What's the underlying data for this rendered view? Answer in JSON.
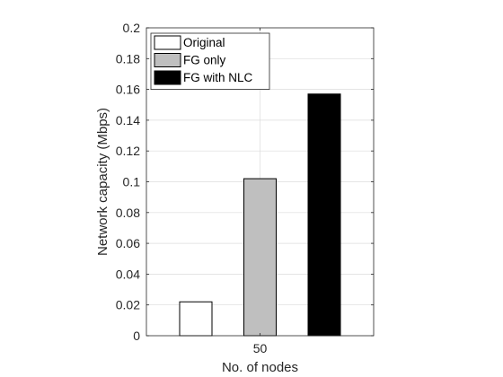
{
  "chart_data": {
    "type": "bar",
    "xlabel": "No. of nodes",
    "ylabel": "Network capacity (Mbps)",
    "categories": [
      "50"
    ],
    "ylim": [
      0,
      0.2
    ],
    "yticks": [
      0,
      0.02,
      0.04,
      0.06,
      0.08,
      0.1,
      0.12,
      0.14,
      0.16,
      0.18,
      0.2
    ],
    "ytick_labels": [
      "0",
      "0.02",
      "0.04",
      "0.06",
      "0.08",
      "0.1",
      "0.12",
      "0.14",
      "0.16",
      "0.18",
      "0.2"
    ],
    "grid": true,
    "legend_position": "top-left",
    "series": [
      {
        "name": "Original",
        "values": [
          0.022
        ],
        "color": "#ffffff"
      },
      {
        "name": "FG only",
        "values": [
          0.102
        ],
        "color": "#bfbfbf"
      },
      {
        "name": "FG with NLC",
        "values": [
          0.157
        ],
        "color": "#000000"
      }
    ]
  }
}
